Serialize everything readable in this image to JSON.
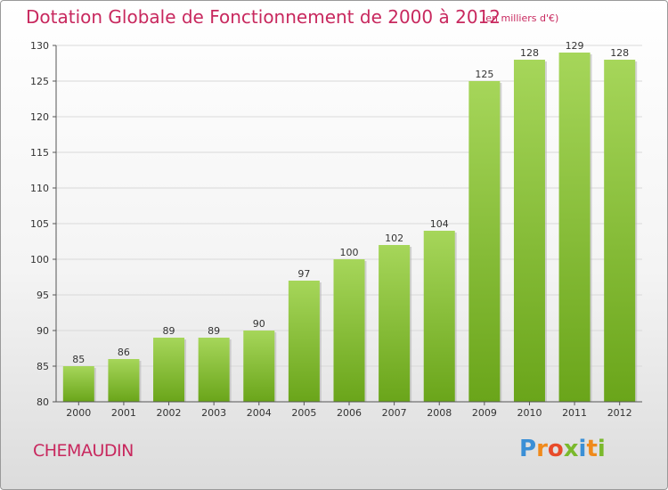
{
  "header": {
    "title": "Dotation Globale de Fonctionnement de 2000 à 2012",
    "subtitle": "(en milliers d'€)"
  },
  "footer": {
    "commune": "CHEMAUDIN",
    "logo": "Proxiti"
  },
  "colors": {
    "title": "#c8285e",
    "bar_light": "#a6d65a",
    "bar_dark": "#6aa51a",
    "grid": "#d9d9d9"
  },
  "chart_data": {
    "type": "bar",
    "categories": [
      "2000",
      "2001",
      "2002",
      "2003",
      "2004",
      "2005",
      "2006",
      "2007",
      "2008",
      "2009",
      "2010",
      "2011",
      "2012"
    ],
    "values": [
      85,
      86,
      89,
      89,
      90,
      97,
      100,
      102,
      104,
      125,
      128,
      129,
      128
    ],
    "title": "Dotation Globale de Fonctionnement de 2000 à 2012",
    "subtitle": "(en milliers d'€)",
    "ylim": [
      80,
      130
    ],
    "yticks": [
      80,
      85,
      90,
      95,
      100,
      105,
      110,
      115,
      120,
      125,
      130
    ],
    "grid": true,
    "data_labels": true
  }
}
